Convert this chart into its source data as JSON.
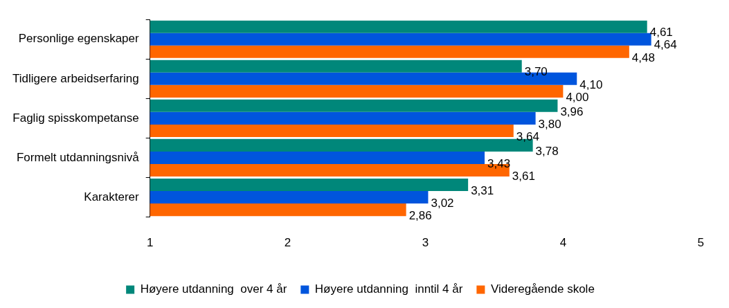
{
  "chart_data": {
    "type": "bar",
    "orientation": "horizontal",
    "categories": [
      "Personlige egenskaper",
      "Tidligere arbeidserfaring",
      "Faglig spisskompetanse",
      "Formelt utdanningsnivå",
      "Karakterer"
    ],
    "series": [
      {
        "name": "Høyere utdanning  over 4 år",
        "color": "#00877a",
        "values": [
          4.61,
          3.7,
          3.96,
          3.78,
          3.31
        ],
        "value_labels": [
          "4,61",
          "3,70",
          "3,96",
          "3,78",
          "3,31"
        ]
      },
      {
        "name": "Høyere utdanning  inntil 4 år",
        "color": "#0055dd",
        "values": [
          4.64,
          4.1,
          3.8,
          3.43,
          3.02
        ],
        "value_labels": [
          "4,64",
          "4,10",
          "3,80",
          "3,43",
          "3,02"
        ]
      },
      {
        "name": "Videregående skole",
        "color": "#ff6600",
        "values": [
          4.48,
          4.0,
          3.64,
          3.61,
          2.86
        ],
        "value_labels": [
          "4,48",
          "4,00",
          "3,64",
          "3,61",
          "2,86"
        ]
      }
    ],
    "xlim": [
      1,
      5
    ],
    "xticks": [
      1,
      2,
      3,
      4,
      5
    ],
    "grid": false,
    "legend": "bottom"
  }
}
